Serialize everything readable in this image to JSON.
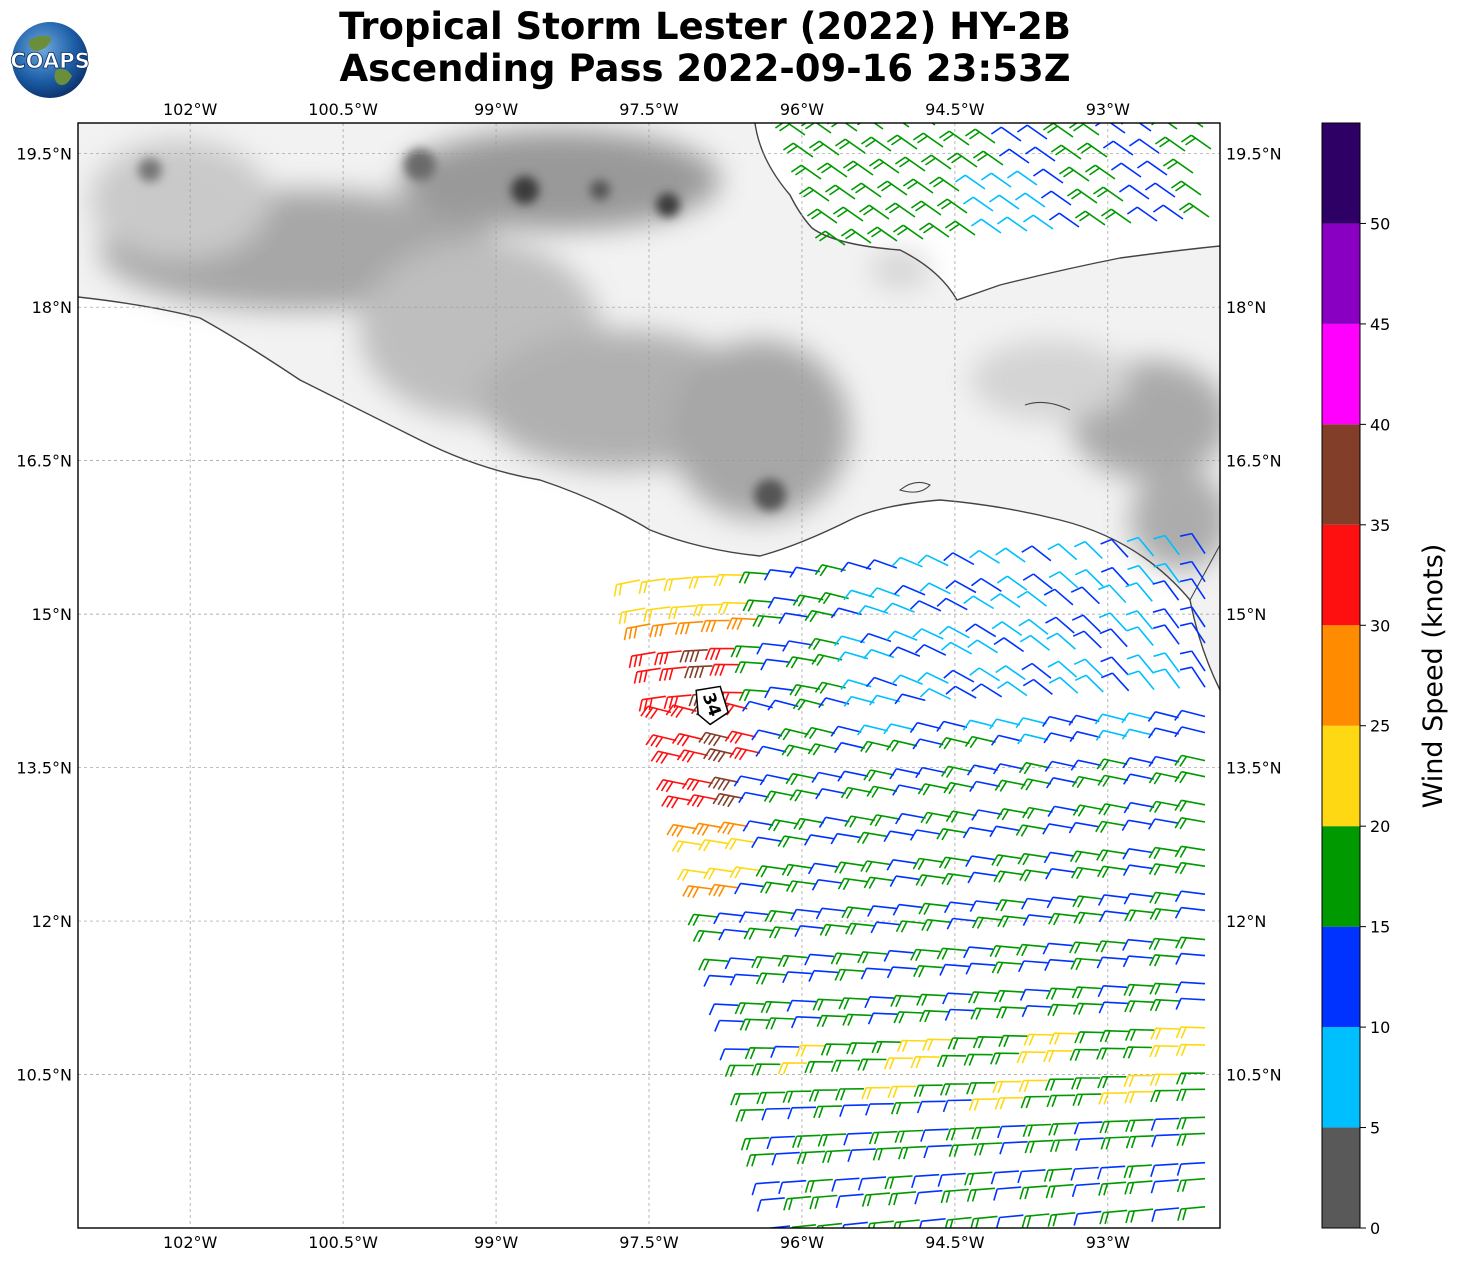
{
  "title": {
    "line1": "Tropical Storm Lester (2022) HY-2B",
    "line2": "Ascending Pass 2022-09-16 23:53Z"
  },
  "logo": {
    "text": "COAPS"
  },
  "map": {
    "extent": {
      "lon": [
        -103.1,
        -91.9
      ],
      "lat": [
        9.0,
        19.8
      ]
    },
    "lon_ticks": [
      {
        "value": -102,
        "label": "102°W"
      },
      {
        "value": -100.5,
        "label": "100.5°W"
      },
      {
        "value": -99,
        "label": "99°W"
      },
      {
        "value": -97.5,
        "label": "97.5°W"
      },
      {
        "value": -96,
        "label": "96°W"
      },
      {
        "value": -94.5,
        "label": "94.5°W"
      },
      {
        "value": -93,
        "label": "93°W"
      }
    ],
    "lat_ticks": [
      {
        "value": 19.5,
        "label": "19.5°N"
      },
      {
        "value": 18,
        "label": "18°N"
      },
      {
        "value": 16.5,
        "label": "16.5°N"
      },
      {
        "value": 15,
        "label": "15°N"
      },
      {
        "value": 13.5,
        "label": "13.5°N"
      },
      {
        "value": 12,
        "label": "12°N"
      },
      {
        "value": 10.5,
        "label": "10.5°N"
      }
    ],
    "storm_marker": {
      "label": "34",
      "lon": -96.9,
      "lat": 14.0
    },
    "colors": {
      "land": "#ffffff",
      "coast": "#444444",
      "grid": "#999999",
      "terrain": "#555555"
    }
  },
  "colorbar": {
    "title": "Wind Speed (knots)",
    "bins": [
      {
        "from": 0,
        "to": 5,
        "color": "#595959"
      },
      {
        "from": 5,
        "to": 10,
        "color": "#00bfff"
      },
      {
        "from": 10,
        "to": 15,
        "color": "#0033ff"
      },
      {
        "from": 15,
        "to": 20,
        "color": "#009900"
      },
      {
        "from": 20,
        "to": 25,
        "color": "#ffd814"
      },
      {
        "from": 25,
        "to": 30,
        "color": "#ff8c00"
      },
      {
        "from": 30,
        "to": 35,
        "color": "#ff1010"
      },
      {
        "from": 35,
        "to": 40,
        "color": "#833e2a"
      },
      {
        "from": 40,
        "to": 45,
        "color": "#ff00ff"
      },
      {
        "from": 45,
        "to": 50,
        "color": "#8a00c2"
      },
      {
        "from": 50,
        "to": 55,
        "color": "#2e0066"
      }
    ],
    "tick_labels": [
      "0",
      "5",
      "10",
      "15",
      "20",
      "25",
      "30",
      "35",
      "40",
      "45",
      "50"
    ]
  }
}
